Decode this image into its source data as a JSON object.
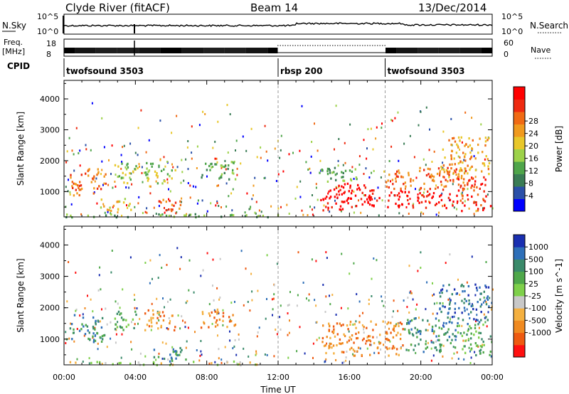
{
  "header": {
    "station": "Clyde River (fitACF)",
    "beam": "Beam 14",
    "date": "13/Dec/2014"
  },
  "top_panels": {
    "nsky_label": "N.Sky",
    "nsky_ticks": [
      "10^5",
      "10^0"
    ],
    "nsearch_label": "N.Search",
    "nsearch_ticks": [
      "10^5",
      "10^0"
    ],
    "freq_label_1": "Freq.",
    "freq_label_2": "[MHz]",
    "freq_ticks": [
      "18",
      "8"
    ],
    "nave_label": "Nave",
    "nave_ticks": [
      "60",
      "0"
    ],
    "cpid_label": "CPID",
    "cpid_segments": [
      {
        "label": "twofsound 3503",
        "start_hour": 0
      },
      {
        "label": "rbsp 200",
        "start_hour": 12
      },
      {
        "label": "twofsound 3503",
        "start_hour": 18
      }
    ]
  },
  "chart_data": [
    {
      "type": "heatmap",
      "name": "power-panel",
      "ylabel": "Slant Range [km]",
      "yticks": [
        1000,
        2000,
        3000,
        4000
      ],
      "ylim": [
        180,
        4600
      ],
      "xlim_hours": [
        0,
        24
      ],
      "colorbar": {
        "label": "Power [dB]",
        "ticks": [
          "4",
          "8",
          "12",
          "16",
          "20",
          "24",
          "28"
        ],
        "colors": [
          "#0000ff",
          "#2a4fa8",
          "#3a7c55",
          "#4fa54a",
          "#9dd24a",
          "#e8c72a",
          "#f09a1e",
          "#f06a14",
          "#ee2a10",
          "#ff0000"
        ]
      },
      "patches": [
        {
          "x0": 0.3,
          "x1": 2.3,
          "y0": 900,
          "y1": 1800,
          "c": 7
        },
        {
          "x0": 2.8,
          "x1": 4.1,
          "y0": 1300,
          "y1": 2000,
          "c": 4
        },
        {
          "x0": 4.5,
          "x1": 6.2,
          "y0": 1300,
          "y1": 2000,
          "c": 4
        },
        {
          "x0": 7.6,
          "x1": 9.6,
          "y0": 1400,
          "y1": 2000,
          "c": 3
        },
        {
          "x0": 5.2,
          "x1": 6.5,
          "y0": 300,
          "y1": 800,
          "c": 7
        },
        {
          "x0": 2.0,
          "x1": 3.8,
          "y0": 400,
          "y1": 800,
          "c": 5
        },
        {
          "x0": 14.3,
          "x1": 17.0,
          "y0": 400,
          "y1": 1300,
          "c": 9
        },
        {
          "x0": 17.0,
          "x1": 22.0,
          "y0": 500,
          "y1": 1100,
          "c": 9
        },
        {
          "x0": 18.0,
          "x1": 22.5,
          "y0": 1100,
          "y1": 1800,
          "c": 7
        },
        {
          "x0": 22.0,
          "x1": 23.9,
          "y0": 400,
          "y1": 1500,
          "c": 8
        },
        {
          "x0": 21.0,
          "x1": 23.8,
          "y0": 1500,
          "y1": 2800,
          "c": 6
        },
        {
          "x0": 14.0,
          "x1": 16.5,
          "y0": 1300,
          "y1": 1800,
          "c": 3
        },
        {
          "x0": 0.0,
          "x1": 12.0,
          "y0": 200,
          "y1": 320,
          "c": 3
        }
      ]
    },
    {
      "type": "heatmap",
      "name": "velocity-panel",
      "ylabel": "Slant Range [km]",
      "yticks": [
        1000,
        2000,
        3000,
        4000
      ],
      "ylim": [
        180,
        4600
      ],
      "xlim_hours": [
        0,
        24
      ],
      "xticks": [
        "00:00",
        "04:00",
        "08:00",
        "12:00",
        "16:00",
        "20:00",
        "00:00"
      ],
      "xlabel": "Time UT",
      "colorbar": {
        "label": "Velocity [m s^-1]",
        "ticks": [
          "1000",
          "500",
          "100",
          "25",
          "-25",
          "-100",
          "-500",
          "-1000"
        ],
        "colors": [
          "#1a2fb0",
          "#2e6fb8",
          "#3a8a6a",
          "#4fa84a",
          "#7ed04a",
          "#c8c8c8",
          "#f4b040",
          "#f08a20",
          "#ee5a10",
          "#ff1010"
        ]
      },
      "patches": [
        {
          "x0": 0.3,
          "x1": 2.3,
          "y0": 900,
          "y1": 1800,
          "c": 2
        },
        {
          "x0": 2.8,
          "x1": 4.1,
          "y0": 1300,
          "y1": 2000,
          "c": 3
        },
        {
          "x0": 4.5,
          "x1": 6.2,
          "y0": 1300,
          "y1": 2000,
          "c": 7
        },
        {
          "x0": 7.6,
          "x1": 9.6,
          "y0": 1400,
          "y1": 2000,
          "c": 7
        },
        {
          "x0": 14.3,
          "x1": 19.0,
          "y0": 500,
          "y1": 1600,
          "c": 7
        },
        {
          "x0": 19.0,
          "x1": 22.0,
          "y0": 600,
          "y1": 1700,
          "c": 2
        },
        {
          "x0": 22.0,
          "x1": 23.9,
          "y0": 500,
          "y1": 1500,
          "c": 3
        },
        {
          "x0": 21.0,
          "x1": 23.8,
          "y0": 1500,
          "y1": 2800,
          "c": 1
        },
        {
          "x0": 0.0,
          "x1": 12.0,
          "y0": 200,
          "y1": 320,
          "c": 5
        },
        {
          "x0": 5.0,
          "x1": 6.8,
          "y0": 300,
          "y1": 800,
          "c": 2
        }
      ]
    }
  ]
}
